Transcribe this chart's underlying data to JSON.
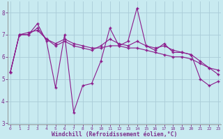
{
  "xlabel": "Windchill (Refroidissement éolien,°C)",
  "ylabel": "",
  "bg_color": "#c8eaf0",
  "line_color": "#8b1a8b",
  "grid_color": "#aaccd8",
  "line1": [
    5.3,
    7.0,
    7.0,
    7.5,
    6.7,
    4.6,
    7.0,
    3.5,
    4.7,
    4.8,
    5.8,
    7.3,
    6.5,
    6.7,
    8.2,
    6.5,
    6.3,
    6.6,
    6.2,
    6.2,
    6.1,
    5.0,
    4.7,
    4.9
  ],
  "line2": [
    5.3,
    7.0,
    7.1,
    7.2,
    6.8,
    6.6,
    6.8,
    6.6,
    6.5,
    6.4,
    6.4,
    6.5,
    6.5,
    6.4,
    6.4,
    6.3,
    6.2,
    6.1,
    6.0,
    6.0,
    5.9,
    5.7,
    5.5,
    5.4
  ],
  "line3": [
    5.3,
    7.0,
    7.0,
    7.3,
    6.8,
    6.5,
    6.7,
    6.5,
    6.4,
    6.3,
    6.5,
    6.8,
    6.6,
    6.5,
    6.7,
    6.5,
    6.4,
    6.5,
    6.3,
    6.2,
    6.1,
    5.8,
    5.5,
    5.2
  ],
  "xmin": 0,
  "xmax": 23,
  "ymin": 3,
  "ymax": 8.5,
  "yticks": [
    3,
    4,
    5,
    6,
    7,
    8
  ],
  "xticks": [
    0,
    1,
    2,
    3,
    4,
    5,
    6,
    7,
    8,
    9,
    10,
    11,
    12,
    13,
    14,
    15,
    16,
    17,
    18,
    19,
    20,
    21,
    22,
    23
  ],
  "tick_color": "#7b2d8b",
  "label_color": "#7b2d8b",
  "spine_color": "#888888"
}
